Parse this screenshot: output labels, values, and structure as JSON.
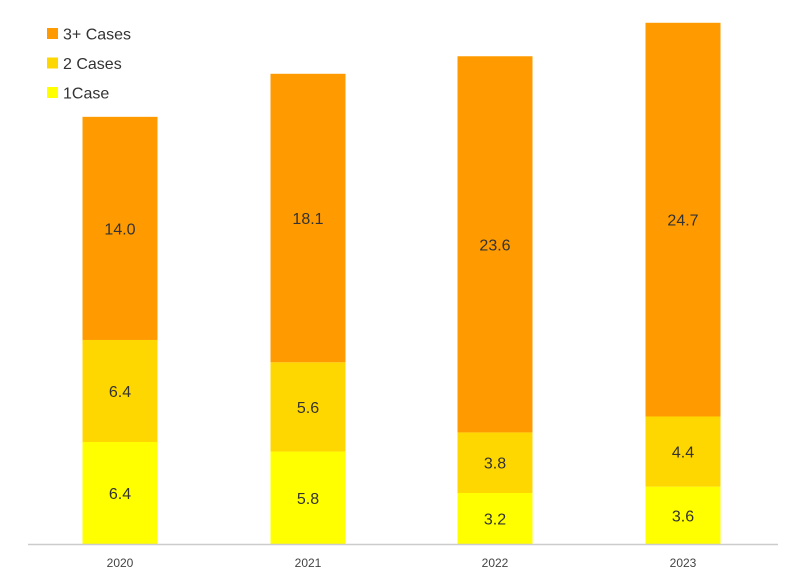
{
  "chart_data": {
    "type": "bar",
    "stacked": true,
    "categories": [
      "2020",
      "2021",
      "2022",
      "2023"
    ],
    "series": [
      {
        "name": "1Case",
        "values": [
          6.4,
          5.8,
          3.2,
          3.6
        ],
        "color": "#FFFF00"
      },
      {
        "name": "2 Cases",
        "values": [
          6.4,
          5.6,
          3.8,
          4.4
        ],
        "color": "#FFD700"
      },
      {
        "name": "3+ Cases",
        "values": [
          14.0,
          18.1,
          23.6,
          24.7
        ],
        "color": "#FF9B00"
      }
    ],
    "legend_order": [
      "3+ Cases",
      "2 Cases",
      "1Case"
    ],
    "legend_position": "top-left",
    "ylim": [
      0,
      33
    ],
    "grid": false,
    "axis_line_color": "#CCCCCC",
    "data_label_color": "#333333"
  }
}
